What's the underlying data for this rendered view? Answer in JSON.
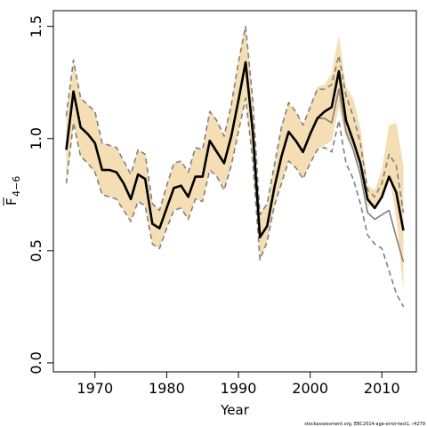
{
  "chart_data": {
    "type": "line",
    "title": "",
    "xlabel": "Year",
    "ylabel_main": "F",
    "ylabel_sub": "4−6",
    "xlim": [
      1964.2,
      2014.8
    ],
    "ylim": [
      -0.04,
      1.57
    ],
    "xticks": [
      1970,
      1980,
      1990,
      2000,
      2010
    ],
    "yticks": [
      0.0,
      0.5,
      1.0,
      1.5
    ],
    "ytick_labels": [
      "0.0",
      "0.5",
      "1.0",
      "1.5"
    ],
    "grid": false,
    "legend": "none",
    "footnote": "stockassessment.org, EBC2014-age-error-test1, r4279",
    "colors": {
      "band": "#f5deb3",
      "estimate": "#000000",
      "ci": "#808080",
      "prior": "#808080"
    },
    "series": [
      {
        "role": "band",
        "x": [
          1966,
          1967,
          1968,
          1969,
          1970,
          1971,
          1972,
          1973,
          1974,
          1975,
          1976,
          1977,
          1978,
          1979,
          1980,
          1981,
          1982,
          1983,
          1984,
          1985,
          1986,
          1987,
          1988,
          1989,
          1990,
          1991,
          1992,
          1993,
          1994,
          1995,
          1996,
          1997,
          1998,
          1999,
          2000,
          2001,
          2002,
          2003,
          2004,
          2005,
          2006,
          2007,
          2008,
          2009,
          2010,
          2011,
          2012,
          2013
        ],
        "lower": [
          0.8,
          1.07,
          0.92,
          0.89,
          0.85,
          0.75,
          0.74,
          0.73,
          0.68,
          0.63,
          0.72,
          0.7,
          0.53,
          0.51,
          0.6,
          0.68,
          0.69,
          0.64,
          0.73,
          0.72,
          0.86,
          0.83,
          0.77,
          0.88,
          1.03,
          1.18,
          0.9,
          0.46,
          0.54,
          0.7,
          0.8,
          0.9,
          0.87,
          0.82,
          0.89,
          0.95,
          0.97,
          0.99,
          1.14,
          1.0,
          0.96,
          0.86,
          0.7,
          0.7,
          0.75,
          0.84,
          0.64,
          0.32
        ],
        "upper": [
          1.1,
          1.35,
          1.18,
          1.15,
          1.12,
          0.98,
          0.97,
          0.96,
          0.9,
          0.84,
          0.95,
          0.93,
          0.71,
          0.68,
          0.79,
          0.89,
          0.9,
          0.85,
          0.96,
          0.95,
          1.13,
          1.08,
          1.01,
          1.16,
          1.35,
          1.51,
          1.18,
          0.67,
          0.71,
          0.88,
          1.06,
          1.16,
          1.12,
          1.06,
          1.15,
          1.23,
          1.24,
          1.29,
          1.46,
          1.23,
          1.18,
          1.05,
          0.79,
          0.77,
          0.86,
          1.06,
          1.07,
          0.88
        ]
      },
      {
        "role": "estimate",
        "style": "solid-thick",
        "x": [
          1966,
          1967,
          1968,
          1969,
          1970,
          1971,
          1972,
          1973,
          1974,
          1975,
          1976,
          1977,
          1978,
          1979,
          1980,
          1981,
          1982,
          1983,
          1984,
          1985,
          1986,
          1987,
          1988,
          1989,
          1990,
          1991,
          1992,
          1993,
          1994,
          1995,
          1996,
          1997,
          1998,
          1999,
          2000,
          2001,
          2002,
          2003,
          2004,
          2005,
          2006,
          2007,
          2008,
          2009,
          2010,
          2011,
          2012,
          2013
        ],
        "values": [
          0.95,
          1.21,
          1.05,
          1.02,
          0.98,
          0.86,
          0.86,
          0.85,
          0.8,
          0.73,
          0.84,
          0.82,
          0.62,
          0.6,
          0.69,
          0.78,
          0.79,
          0.74,
          0.83,
          0.83,
          0.99,
          0.94,
          0.89,
          1.01,
          1.17,
          1.34,
          1.03,
          0.56,
          0.61,
          0.78,
          0.92,
          1.03,
          0.99,
          0.94,
          1.02,
          1.09,
          1.12,
          1.14,
          1.3,
          1.08,
          0.99,
          0.89,
          0.73,
          0.69,
          0.74,
          0.83,
          0.76,
          0.59
        ]
      },
      {
        "role": "ci-upper",
        "style": "dashed",
        "x": [
          1966,
          1967,
          1968,
          1969,
          1970,
          1971,
          1972,
          1973,
          1974,
          1975,
          1976,
          1977,
          1978,
          1979,
          1980,
          1981,
          1982,
          1983,
          1984,
          1985,
          1986,
          1987,
          1988,
          1989,
          1990,
          1991,
          1992,
          1993,
          1994,
          1995,
          1996,
          1997,
          1998,
          1999,
          2000,
          2001,
          2002,
          2003,
          2004,
          2005,
          2006,
          2007,
          2008,
          2009,
          2010,
          2011,
          2012,
          2013
        ],
        "values": [
          1.1,
          1.35,
          1.18,
          1.15,
          1.12,
          0.98,
          0.97,
          0.96,
          0.9,
          0.84,
          0.95,
          0.93,
          0.71,
          0.68,
          0.79,
          0.89,
          0.9,
          0.85,
          0.96,
          0.95,
          1.12,
          1.08,
          1.01,
          1.15,
          1.34,
          1.5,
          1.17,
          0.66,
          0.71,
          0.88,
          1.05,
          1.16,
          1.12,
          1.06,
          1.14,
          1.22,
          1.22,
          1.24,
          1.37,
          1.19,
          1.1,
          0.98,
          0.77,
          0.74,
          0.8,
          0.93,
          0.88,
          0.67
        ]
      },
      {
        "role": "ci-lower",
        "style": "dashed",
        "x": [
          1966,
          1967,
          1968,
          1969,
          1970,
          1971,
          1972,
          1973,
          1974,
          1975,
          1976,
          1977,
          1978,
          1979,
          1980,
          1981,
          1982,
          1983,
          1984,
          1985,
          1986,
          1987,
          1988,
          1989,
          1990,
          1991,
          1992,
          1993,
          1994,
          1995,
          1996,
          1997,
          1998,
          1999,
          2000,
          2001,
          2002,
          2003,
          2004,
          2005,
          2006,
          2007,
          2008,
          2009,
          2010,
          2011,
          2012,
          2013
        ],
        "values": [
          0.8,
          1.07,
          0.92,
          0.89,
          0.85,
          0.75,
          0.74,
          0.73,
          0.68,
          0.63,
          0.72,
          0.7,
          0.53,
          0.51,
          0.6,
          0.68,
          0.69,
          0.64,
          0.73,
          0.72,
          0.86,
          0.83,
          0.77,
          0.88,
          1.03,
          1.18,
          0.9,
          0.46,
          0.54,
          0.7,
          0.8,
          0.9,
          0.87,
          0.82,
          0.89,
          0.95,
          0.96,
          0.94,
          1.08,
          0.89,
          0.82,
          0.71,
          0.57,
          0.53,
          0.51,
          0.41,
          0.31,
          0.25
        ]
      },
      {
        "role": "alt-estimate",
        "style": "solid-thin",
        "x": [
          2000,
          2001,
          2002,
          2003,
          2004,
          2005,
          2006,
          2007,
          2008,
          2009,
          2010,
          2011,
          2012,
          2013
        ],
        "values": [
          1.02,
          1.09,
          1.09,
          1.07,
          1.22,
          1.03,
          0.95,
          0.84,
          0.67,
          0.64,
          0.66,
          0.68,
          0.56,
          0.45
        ]
      }
    ]
  }
}
